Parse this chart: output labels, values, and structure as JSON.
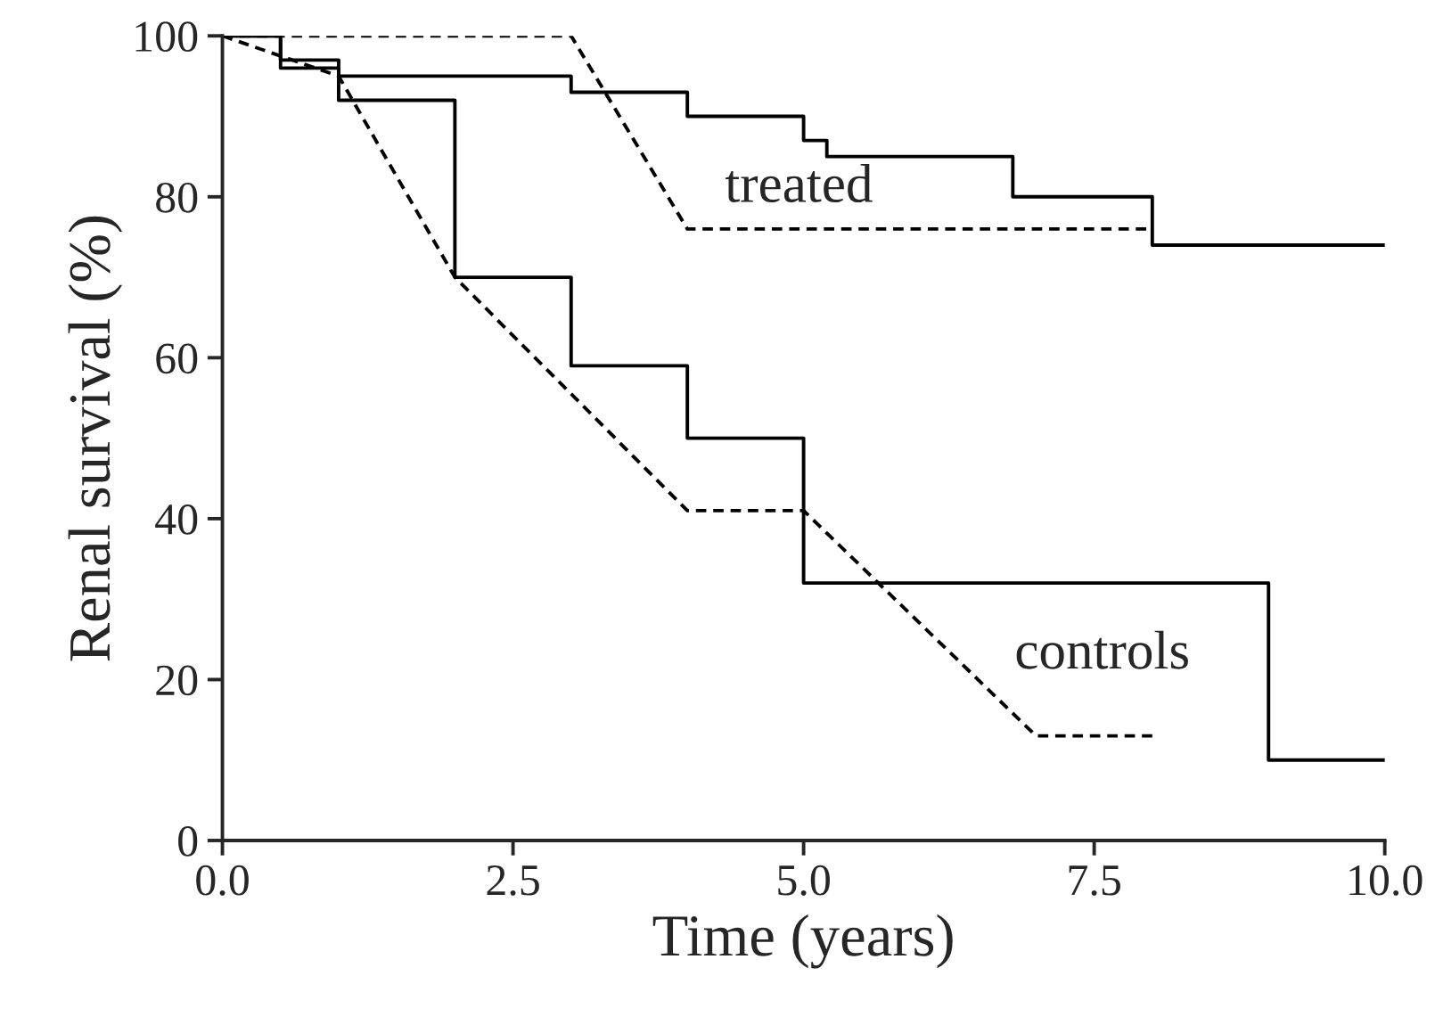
{
  "chart_data": {
    "type": "step",
    "xlabel": "Time (years)",
    "ylabel": "Renal survival (%)",
    "xlim": [
      0,
      10
    ],
    "ylim": [
      0,
      100
    ],
    "xticks": [
      {
        "value": 0,
        "label": "0.0"
      },
      {
        "value": 2.5,
        "label": "2.5"
      },
      {
        "value": 5,
        "label": "5.0"
      },
      {
        "value": 7.5,
        "label": "7.5"
      },
      {
        "value": 10,
        "label": "10.0"
      }
    ],
    "yticks": [
      0,
      20,
      40,
      60,
      80,
      100
    ],
    "grid": false,
    "legend": false,
    "marker": "none",
    "series": [
      {
        "line_style": "solid",
        "color": "#000000",
        "x": [
          0,
          0.5,
          1,
          3,
          4,
          5,
          5.2,
          6.8,
          8,
          10
        ],
        "values": [
          100,
          97,
          95,
          93,
          90,
          87,
          85,
          80,
          74,
          74
        ]
      },
      {
        "line_style": "solid",
        "color": "#000000",
        "x": [
          0,
          0.5,
          1,
          2,
          3,
          4,
          5,
          9,
          10
        ],
        "values": [
          100,
          96,
          92,
          70,
          59,
          50,
          32,
          10,
          10
        ]
      },
      {
        "type": "line",
        "line_style": "dashed",
        "color": "#000000",
        "x": [
          0,
          3,
          4,
          8
        ],
        "values": [
          100,
          100,
          76,
          76
        ]
      },
      {
        "type": "line",
        "line_style": "dashed",
        "color": "#000000",
        "x": [
          0,
          1,
          2,
          4,
          5,
          7,
          8
        ],
        "values": [
          100,
          95,
          70,
          41,
          41,
          13,
          13
        ]
      }
    ],
    "annotations": [
      "treated",
      "controls"
    ]
  }
}
